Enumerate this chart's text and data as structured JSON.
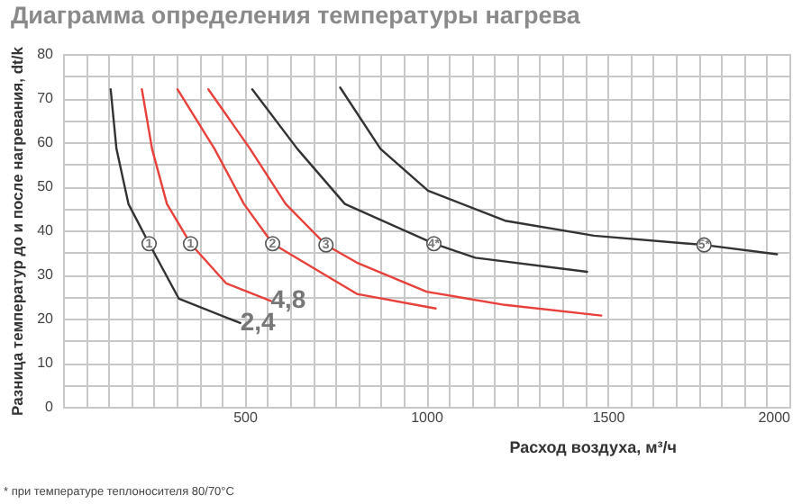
{
  "chart_data": {
    "type": "line",
    "title": "Диаграмма определения температуры нагрева",
    "xlabel": "Расход воздуха, м³/ч",
    "ylabel": "Разница температур до и после нагревания, dt/k",
    "xlim": [
      0,
      2000
    ],
    "ylim": [
      0,
      80
    ],
    "xticks": [
      {
        "value": 0,
        "label": null
      },
      {
        "value": 62.5,
        "label": null
      },
      {
        "value": 125,
        "label": null
      },
      {
        "value": 187.5,
        "label": null
      },
      {
        "value": 250,
        "label": null
      },
      {
        "value": 312.5,
        "label": null
      },
      {
        "value": 375,
        "label": null
      },
      {
        "value": 437.5,
        "label": null
      },
      500,
      {
        "value": 562.5,
        "label": null
      },
      {
        "value": 625,
        "label": null
      },
      {
        "value": 687.5,
        "label": null
      },
      {
        "value": 750,
        "label": null
      },
      {
        "value": 812.5,
        "label": null
      },
      {
        "value": 875,
        "label": null
      },
      {
        "value": 937.5,
        "label": null
      },
      1000,
      {
        "value": 1062.5,
        "label": null
      },
      {
        "value": 1125,
        "label": null
      },
      {
        "value": 1187.5,
        "label": null
      },
      {
        "value": 1250,
        "label": null
      },
      {
        "value": 1312.5,
        "label": null
      },
      {
        "value": 1375,
        "label": null
      },
      {
        "value": 1437.5,
        "label": null
      },
      1500,
      {
        "value": 1562.5,
        "label": null
      },
      {
        "value": 1625,
        "label": null
      },
      {
        "value": 1687.5,
        "label": null
      },
      {
        "value": 1750,
        "label": null
      },
      {
        "value": 1812.5,
        "label": null
      },
      {
        "value": 1875,
        "label": null
      },
      {
        "value": 1937.5,
        "label": null
      },
      2000
    ],
    "yticks": [
      0,
      {
        "value": 5,
        "label": null
      },
      10,
      {
        "value": 15,
        "label": null
      },
      20,
      {
        "value": 25,
        "label": null
      },
      30,
      {
        "value": 35,
        "label": null
      },
      40,
      {
        "value": 45,
        "label": null
      },
      50,
      {
        "value": 55,
        "label": null
      },
      60,
      {
        "value": 65,
        "label": null
      },
      70,
      {
        "value": 75,
        "label": null
      },
      80
    ],
    "grid": true,
    "marker": "none",
    "line_style": "solid",
    "series": [
      {
        "color": "#333333",
        "x": [
          131,
          147,
          180,
          237,
          319,
          488
        ],
        "values": [
          72,
          58.5,
          46,
          37,
          24.5,
          19
        ]
      },
      {
        "color": "#e8403a",
        "x": [
          217,
          245,
          286,
          351,
          449,
          572
        ],
        "values": [
          72,
          58.5,
          46,
          37,
          28,
          24
        ]
      },
      {
        "color": "#e8403a",
        "x": [
          315,
          417,
          498,
          577,
          809,
          1026
        ],
        "values": [
          72,
          58.5,
          46,
          37,
          25.6,
          22.3
        ]
      },
      {
        "color": "#e8403a",
        "x": [
          400,
          515,
          613,
          724,
          809,
          1001,
          1217,
          1482
        ],
        "values": [
          72,
          58.5,
          46,
          36.7,
          32.7,
          26.1,
          23.1,
          20.7
        ]
      },
      {
        "color": "#333333",
        "x": [
          521,
          645,
          776,
          1021,
          1135,
          1443
        ],
        "values": [
          72,
          58.5,
          46,
          37,
          33.8,
          30.6
        ]
      },
      {
        "color": "#333333",
        "x": [
          763,
          874,
          1005,
          1217,
          1462,
          1765,
          1966
        ],
        "values": [
          72.4,
          58.5,
          49,
          42.2,
          38.8,
          36.7,
          34.6
        ]
      }
    ],
    "annotations": [
      {
        "text": "1",
        "x": 237,
        "y": 37
      },
      {
        "text": "1",
        "x": 351,
        "y": 37
      },
      {
        "text": "2",
        "x": 577,
        "y": 37
      },
      {
        "text": "3",
        "x": 724,
        "y": 36.7
      },
      {
        "text": "4*",
        "x": 1021,
        "y": 37
      },
      {
        "text": "5*",
        "x": 1765,
        "y": 36.7
      },
      {
        "text": "2,4",
        "x": 488,
        "y": 19
      },
      {
        "text": "4,8",
        "x": 572,
        "y": 24
      },
      "* при температуре теплоносителя 80/70°C"
    ]
  }
}
